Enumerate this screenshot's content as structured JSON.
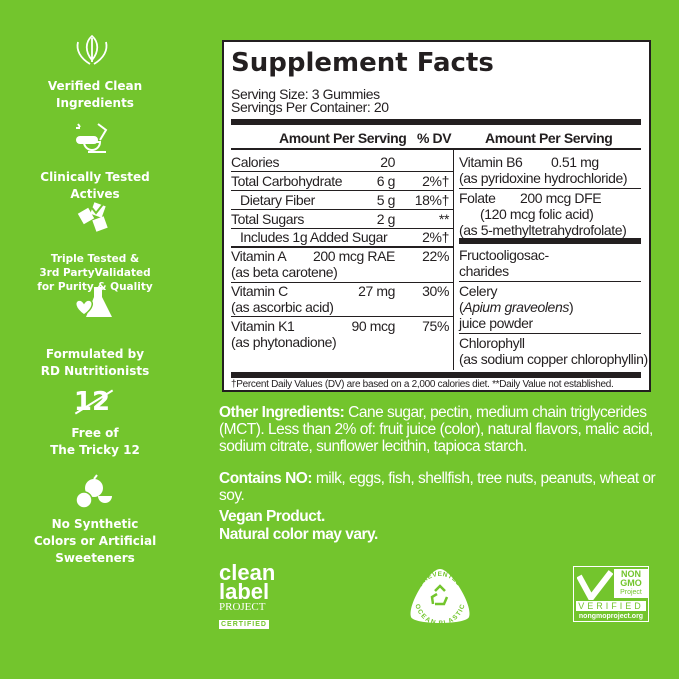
{
  "sidebar": {
    "items": [
      {
        "icon": "hands-leaf-icon",
        "lines": [
          "Verified Clean",
          "Ingredients"
        ]
      },
      {
        "icon": "microscope-pill-icon",
        "lines": [
          "Clinically Tested",
          "Actives"
        ]
      },
      {
        "icon": "checkmark-cards-icon",
        "lines": [
          "Triple Tested &",
          "3rd PartyValidated",
          "for Purity & Quality"
        ]
      },
      {
        "icon": "flask-heart-icon",
        "lines": [
          "Formulated by",
          "RD Nutritionists"
        ]
      },
      {
        "icon": "crossed-12-icon",
        "glyph": "12",
        "lines": [
          "Free of",
          "The Tricky 12"
        ]
      },
      {
        "icon": "fruit-icon",
        "lines": [
          "No Synthetic",
          "Colors or Artificial",
          "Sweeteners"
        ]
      }
    ]
  },
  "facts": {
    "title": "Supplement Facts",
    "serving_size": "Serving Size: 3 Gummies",
    "servings_per_container": "Servings Per Container: 20",
    "header_amount": "Amount Per Serving",
    "header_dv": "% DV",
    "header_amount_right": "Amount Per Serving",
    "left_rows": [
      {
        "name": "Calories",
        "amount": "20",
        "dv": ""
      },
      {
        "name": "Total Carbohydrate",
        "amount": "6 g",
        "dv": "2%†"
      },
      {
        "name": "Dietary Fiber",
        "amount": "5 g",
        "dv": "18%†"
      },
      {
        "name": "Total Sugars",
        "amount": "2 g",
        "dv": "**"
      },
      {
        "name": "Includes 1g Added Sugar",
        "amount": "",
        "dv": "2%†"
      },
      {
        "name": "Vitamin A",
        "amount": "200 mcg RAE",
        "dv": "22%",
        "sub": "(as beta carotene)"
      },
      {
        "name": "Vitamin C",
        "amount": "27 mg",
        "dv": "30%",
        "sub": "(as ascorbic acid)"
      },
      {
        "name": "Vitamin K1",
        "amount": "90 mcg",
        "dv": "75%",
        "sub": "(as phytonadione)"
      }
    ],
    "right_rows": [
      {
        "name": "Vitamin B6",
        "amount": "0.51 mg",
        "sub": "(as pyridoxine hydrochloride)"
      },
      {
        "name": "Folate",
        "amount": "200 mcg DFE",
        "sub": "(120 mcg folic acid)",
        "sub2": "(as 5-methyltetrahydrofolate)"
      },
      {
        "line1": "Fructooligosac-",
        "line2": "charides"
      },
      {
        "line1": "Celery",
        "line2": "Apium graveolens",
        "line3": "juice powder"
      },
      {
        "line1": "Chlorophyll",
        "line2": "(as sodium copper chlorophyllin)"
      }
    ],
    "footnote": "†Percent Daily Values (DV) are based on a 2,000 calories diet. **Daily Value not established."
  },
  "other": {
    "label": "Other Ingredients:",
    "text": "Cane sugar, pectin, medium chain triglycerides (MCT). Less than 2% of: fruit juice (color), natural flavors, malic acid, sodium citrate, sunflower lecithin, tapioca starch.",
    "contains_label": "Contains NO:",
    "contains_text": "milk, eggs, fish, shellfish, tree nuts, peanuts, wheat or soy.",
    "vegan": "Vegan Product.",
    "color_note": "Natural color may vary."
  },
  "badges": {
    "clean_label": {
      "l1": "clean",
      "l2": "label",
      "l3": "PROJECT",
      "l4": "CERTIFIED"
    },
    "ocean": {
      "top": "PREVENTED",
      "bottom": "OCEAN PLASTIC"
    },
    "nongmo": {
      "l1": "NON",
      "l2": "GMO",
      "l3": "Project",
      "l4": "VERIFIED",
      "l5": "nongmoproject.org"
    }
  },
  "colors": {
    "background": "#73c52d",
    "ink": "#231f20"
  }
}
